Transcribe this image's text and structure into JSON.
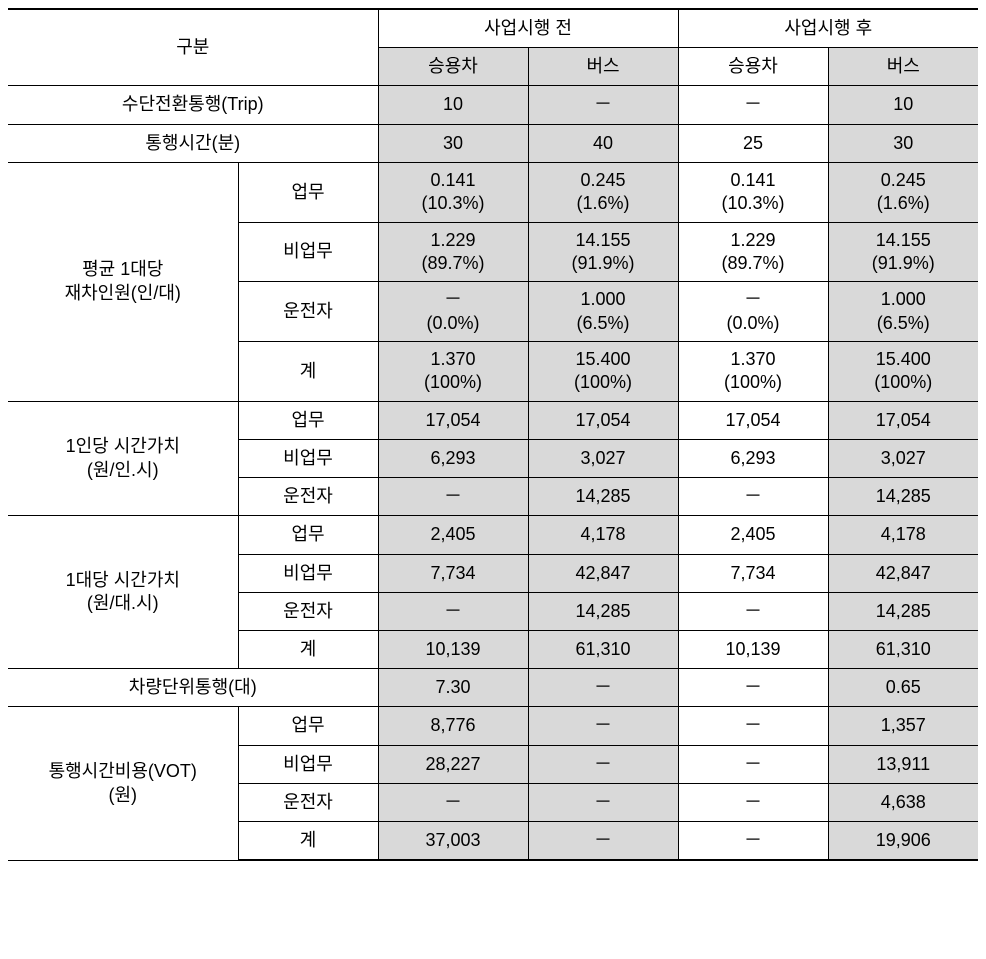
{
  "colors": {
    "shaded_bg": "#d9d9d9",
    "border": "#000000",
    "background": "#ffffff"
  },
  "fonts": {
    "base_size": 18,
    "family": "Malgun Gothic"
  },
  "header": {
    "gubun": "구분",
    "before": "사업시행 전",
    "after": "사업시행 후",
    "car": "승용차",
    "bus": "버스"
  },
  "rows": {
    "trip": {
      "label": "수단전환통행(Trip)",
      "before_car": "10",
      "before_bus": "－",
      "after_car": "－",
      "after_bus": "10"
    },
    "time": {
      "label": "통행시간(분)",
      "before_car": "30",
      "before_bus": "40",
      "after_car": "25",
      "after_bus": "30"
    },
    "occupancy": {
      "label": "평균 1대당\n재차인원(인/대)",
      "sub": {
        "business": {
          "label": "업무",
          "before_car": "0.141\n(10.3%)",
          "before_bus": "0.245\n(1.6%)",
          "after_car": "0.141\n(10.3%)",
          "after_bus": "0.245\n(1.6%)"
        },
        "nonbusiness": {
          "label": "비업무",
          "before_car": "1.229\n(89.7%)",
          "before_bus": "14.155\n(91.9%)",
          "after_car": "1.229\n(89.7%)",
          "after_bus": "14.155\n(91.9%)"
        },
        "driver": {
          "label": "운전자",
          "before_car": "－\n(0.0%)",
          "before_bus": "1.000\n(6.5%)",
          "after_car": "－\n(0.0%)",
          "after_bus": "1.000\n(6.5%)"
        },
        "total": {
          "label": "계",
          "before_car": "1.370\n(100%)",
          "before_bus": "15.400\n(100%)",
          "after_car": "1.370\n(100%)",
          "after_bus": "15.400\n(100%)"
        }
      }
    },
    "value_person": {
      "label": "1인당 시간가치\n(원/인.시)",
      "sub": {
        "business": {
          "label": "업무",
          "before_car": "17,054",
          "before_bus": "17,054",
          "after_car": "17,054",
          "after_bus": "17,054"
        },
        "nonbusiness": {
          "label": "비업무",
          "before_car": "6,293",
          "before_bus": "3,027",
          "after_car": "6,293",
          "after_bus": "3,027"
        },
        "driver": {
          "label": "운전자",
          "before_car": "－",
          "before_bus": "14,285",
          "after_car": "－",
          "after_bus": "14,285"
        }
      }
    },
    "value_vehicle": {
      "label": "1대당 시간가치\n(원/대.시)",
      "sub": {
        "business": {
          "label": "업무",
          "before_car": "2,405",
          "before_bus": "4,178",
          "after_car": "2,405",
          "after_bus": "4,178"
        },
        "nonbusiness": {
          "label": "비업무",
          "before_car": "7,734",
          "before_bus": "42,847",
          "after_car": "7,734",
          "after_bus": "42,847"
        },
        "driver": {
          "label": "운전자",
          "before_car": "－",
          "before_bus": "14,285",
          "after_car": "－",
          "after_bus": "14,285"
        },
        "total": {
          "label": "계",
          "before_car": "10,139",
          "before_bus": "61,310",
          "after_car": "10,139",
          "after_bus": "61,310"
        }
      }
    },
    "vehicle_trip": {
      "label": "차량단위통행(대)",
      "before_car": "7.30",
      "before_bus": "－",
      "after_car": "－",
      "after_bus": "0.65"
    },
    "vot": {
      "label": "통행시간비용(VOT)\n(원)",
      "sub": {
        "business": {
          "label": "업무",
          "before_car": "8,776",
          "before_bus": "－",
          "after_car": "－",
          "after_bus": "1,357"
        },
        "nonbusiness": {
          "label": "비업무",
          "before_car": "28,227",
          "before_bus": "－",
          "after_car": "－",
          "after_bus": "13,911"
        },
        "driver": {
          "label": "운전자",
          "before_car": "－",
          "before_bus": "－",
          "after_car": "－",
          "after_bus": "4,638"
        },
        "total": {
          "label": "계",
          "before_car": "37,003",
          "before_bus": "－",
          "after_car": "－",
          "after_bus": "19,906"
        }
      }
    }
  }
}
